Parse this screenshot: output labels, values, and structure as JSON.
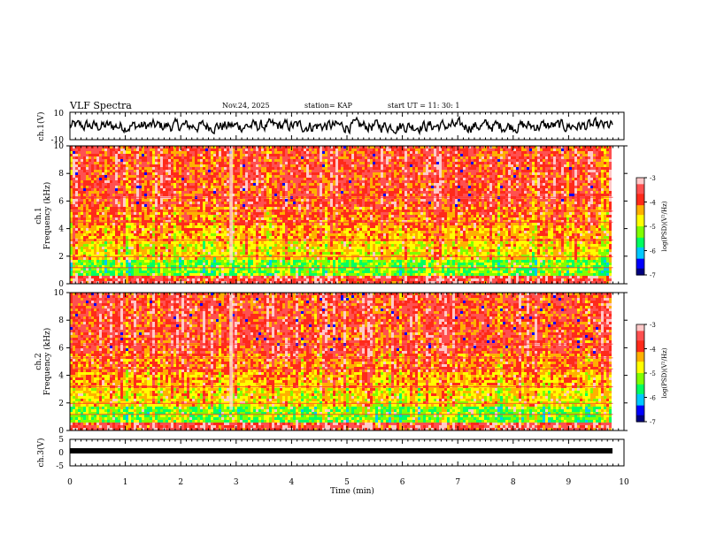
{
  "header": {
    "title": "VLF Spectra",
    "date": "Nov.24, 2025",
    "station": "station= KAP",
    "start": "start  UT  =   11: 30: 1"
  },
  "chart_data": [
    {
      "type": "line",
      "name": "ch1-waveform",
      "ylabel": "ch.1(V)",
      "ylim": [
        -10,
        10
      ],
      "yticks": [
        "10",
        "-10"
      ]
    },
    {
      "type": "heatmap",
      "name": "ch1-spectrogram",
      "ylabel": "ch.1\nFrequency (kHz)",
      "ylabel_line1": "ch.1",
      "ylabel_line2": "Frequency (kHz)",
      "ylim": [
        0,
        10
      ],
      "yticks": [
        "0",
        "2",
        "4",
        "6",
        "8",
        "10"
      ],
      "colorbar": {
        "label": "log(PSD)(V²/Hz)",
        "range": [
          -7,
          -3
        ],
        "ticks": [
          "-3",
          "-4",
          "-5",
          "-6",
          "-7"
        ]
      }
    },
    {
      "type": "heatmap",
      "name": "ch2-spectrogram",
      "ylabel_line1": "ch.2",
      "ylabel_line2": "Frequency (kHz)",
      "ylim": [
        0,
        10
      ],
      "yticks": [
        "0",
        "2",
        "4",
        "6",
        "8",
        "10"
      ],
      "colorbar": {
        "label": "log(PSD)(V²/Hz)",
        "range": [
          -7,
          -3
        ],
        "ticks": [
          "-3",
          "-4",
          "-5",
          "-6",
          "-7"
        ]
      }
    },
    {
      "type": "line",
      "name": "ch3-waveform",
      "ylabel": "ch.3(V)",
      "ylim": [
        -5,
        5
      ],
      "yticks": [
        "5",
        "0",
        "-5"
      ],
      "level": -0.8
    }
  ],
  "xaxis": {
    "label": "Time (min)",
    "range": [
      0,
      10
    ],
    "ticks": [
      "0",
      "1",
      "2",
      "3",
      "4",
      "5",
      "6",
      "7",
      "8",
      "9",
      "10"
    ],
    "data_end": 9.8
  },
  "colors": {
    "scale": [
      "#000080",
      "#0000ff",
      "#00c8ff",
      "#00ff60",
      "#80ff00",
      "#ffff00",
      "#ffb000",
      "#ff2a1a",
      "#ff5050",
      "#ffc8c8"
    ]
  }
}
